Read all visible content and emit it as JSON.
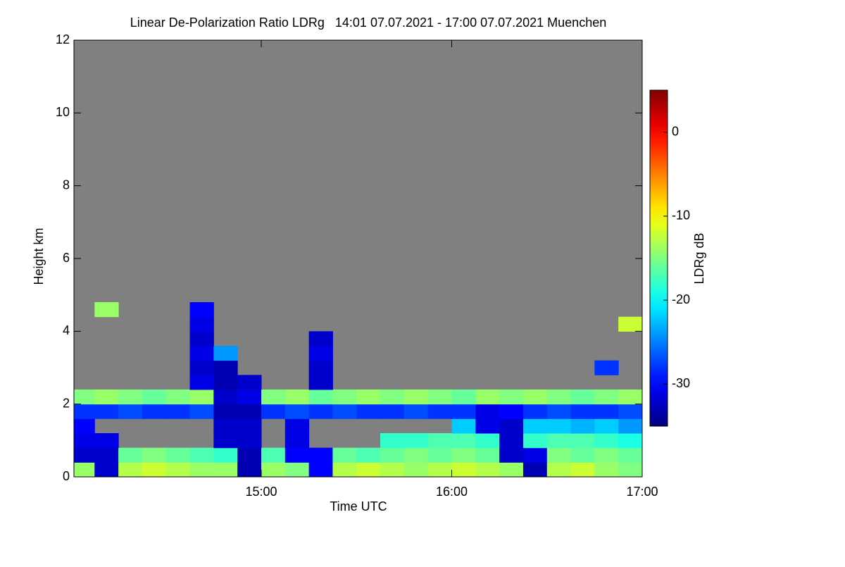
{
  "chart_data": {
    "type": "heatmap",
    "title": "Linear De-Polarization Ratio LDRg   14:01 07.07.2021 - 17:00 07.07.2021 Muenchen",
    "xlabel": "Time UTC",
    "ylabel": "Height km",
    "colorbar_label": "LDRg dB",
    "x": [
      14.0625,
      14.1875,
      14.3125,
      14.4375,
      14.5625,
      14.6875,
      14.8125,
      14.9375,
      15.0625,
      15.1875,
      15.3125,
      15.4375,
      15.5625,
      15.6875,
      15.8125,
      15.9375,
      16.0625,
      16.1875,
      16.3125,
      16.4375,
      16.5625,
      16.6875,
      16.8125,
      16.9375
    ],
    "y": [
      0.2,
      0.6,
      1.0,
      1.4,
      1.8,
      2.2,
      2.6,
      3.0,
      3.4,
      3.8,
      4.2,
      4.6
    ],
    "z": [
      [
        -14,
        -32,
        -13,
        -12,
        -13,
        -14,
        -14,
        -33,
        -14,
        -15,
        -30,
        -13,
        -12,
        -13,
        -14,
        -13,
        -12,
        -13,
        -14,
        -33,
        -13,
        -12,
        -14,
        -15
      ],
      [
        -32,
        -32,
        -16,
        -15,
        -16,
        -17,
        -18,
        -33,
        -17,
        -30,
        -30,
        -16,
        -17,
        -16,
        -15,
        -16,
        -15,
        -16,
        -32,
        -31,
        -15,
        -16,
        -15,
        -16
      ],
      [
        -31,
        -31,
        null,
        null,
        null,
        null,
        -32,
        -32,
        null,
        -31,
        null,
        null,
        null,
        -18,
        -18,
        -17,
        -17,
        -18,
        -32,
        -18,
        -17,
        -17,
        -18,
        -19
      ],
      [
        -30,
        null,
        null,
        null,
        null,
        null,
        -32,
        -32,
        null,
        -31,
        null,
        null,
        null,
        null,
        null,
        null,
        -22,
        -31,
        -32,
        -22,
        -22,
        -23,
        -22,
        -24
      ],
      [
        -28,
        -28,
        -27,
        -28,
        -28,
        -27,
        -33,
        -33,
        -28,
        -27,
        -28,
        -27,
        -28,
        -28,
        -27,
        -28,
        -28,
        -31,
        -30,
        -28,
        -27,
        -28,
        -28,
        -27
      ],
      [
        -15,
        -14,
        -15,
        -16,
        -15,
        -14,
        -32,
        -31,
        -15,
        -14,
        -16,
        -15,
        -14,
        -15,
        -14,
        -15,
        -16,
        -14,
        -15,
        -14,
        -15,
        -16,
        -15,
        -14
      ],
      [
        null,
        null,
        null,
        null,
        null,
        -31,
        -33,
        -32,
        null,
        null,
        -32,
        null,
        null,
        null,
        null,
        null,
        null,
        null,
        null,
        null,
        null,
        null,
        null,
        null
      ],
      [
        null,
        null,
        null,
        null,
        null,
        -32,
        -33,
        null,
        null,
        null,
        -32,
        null,
        null,
        null,
        null,
        null,
        null,
        null,
        null,
        null,
        null,
        null,
        -28,
        null
      ],
      [
        null,
        null,
        null,
        null,
        null,
        -31,
        -24,
        null,
        null,
        null,
        -31,
        null,
        null,
        null,
        null,
        null,
        null,
        null,
        null,
        null,
        null,
        null,
        null,
        null
      ],
      [
        null,
        null,
        null,
        null,
        null,
        -32,
        null,
        null,
        null,
        null,
        -32,
        null,
        null,
        null,
        null,
        null,
        null,
        null,
        null,
        null,
        null,
        null,
        null,
        null
      ],
      [
        null,
        null,
        null,
        null,
        null,
        -31,
        null,
        null,
        null,
        null,
        null,
        null,
        null,
        null,
        null,
        null,
        null,
        null,
        null,
        null,
        null,
        null,
        null,
        -12
      ],
      [
        null,
        -14,
        null,
        null,
        null,
        -30,
        null,
        null,
        null,
        null,
        null,
        null,
        null,
        null,
        null,
        null,
        null,
        null,
        null,
        null,
        null,
        null,
        null,
        null
      ]
    ],
    "xlim": [
      14.0167,
      17
    ],
    "xticks": [
      {
        "value": 15,
        "label": "15:00"
      },
      {
        "value": 16,
        "label": "16:00"
      },
      {
        "value": 17,
        "label": "17:00"
      }
    ],
    "ylim": [
      0,
      12
    ],
    "yticks": [
      0,
      2,
      4,
      6,
      8,
      10,
      12
    ],
    "clim": [
      -35,
      5
    ],
    "cticks": [
      0,
      -10,
      -20,
      -30
    ],
    "colormap": "jet",
    "missing_color": "#808080"
  }
}
